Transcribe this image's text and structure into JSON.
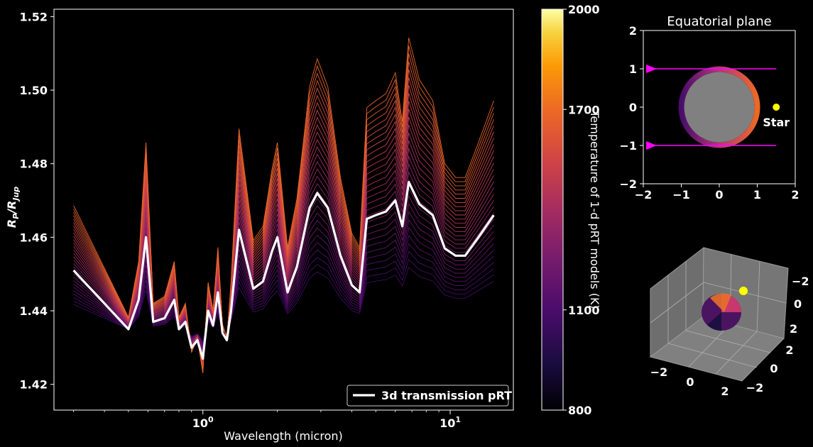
{
  "chart_data": [
    {
      "type": "line",
      "xlabel": "Wavelength (micron)",
      "ylabel_main": "R",
      "ylabel_main_sub": "P",
      "ylabel_div": "/R",
      "ylabel_div_sub": "Jup",
      "xscale": "log",
      "xlim": [
        0.25,
        18
      ],
      "ylim": [
        1.413,
        1.522
      ],
      "xticks": [
        {
          "value": 1,
          "base": "10",
          "exp": "0"
        },
        {
          "value": 10,
          "base": "10",
          "exp": "1"
        }
      ],
      "yticks": [
        "1.42",
        "1.44",
        "1.46",
        "1.48",
        "1.50",
        "1.52"
      ],
      "legend": {
        "position": "bottom-right",
        "label": "3d transmission pRT"
      },
      "model_count": 30,
      "highlight_series": {
        "name": "3d transmission pRT",
        "color": "#ffffff",
        "x": [
          0.3,
          0.33,
          0.4,
          0.5,
          0.55,
          0.589,
          0.63,
          0.7,
          0.766,
          0.8,
          0.85,
          0.9,
          0.95,
          1.0,
          1.05,
          1.1,
          1.15,
          1.2,
          1.25,
          1.3,
          1.4,
          1.6,
          1.75,
          1.9,
          2.0,
          2.2,
          2.4,
          2.7,
          2.9,
          3.2,
          3.6,
          4.0,
          4.3,
          4.6,
          5.0,
          5.5,
          6.0,
          6.4,
          6.8,
          7.5,
          8.5,
          9.5,
          10.5,
          11.5,
          13.0,
          15.0
        ],
        "y": [
          1.451,
          1.448,
          1.442,
          1.435,
          1.443,
          1.46,
          1.437,
          1.438,
          1.443,
          1.435,
          1.437,
          1.43,
          1.432,
          1.427,
          1.44,
          1.436,
          1.445,
          1.434,
          1.432,
          1.44,
          1.462,
          1.446,
          1.448,
          1.456,
          1.46,
          1.445,
          1.452,
          1.468,
          1.472,
          1.468,
          1.455,
          1.447,
          1.445,
          1.465,
          1.466,
          1.467,
          1.47,
          1.463,
          1.475,
          1.469,
          1.466,
          1.457,
          1.455,
          1.455,
          1.46,
          1.466
        ]
      },
      "colorbar": {
        "label": "Temperature of 1-d pRT models (K)",
        "min": 800,
        "max": 2000,
        "ticks": [
          "800",
          "1100",
          "1700",
          "2000"
        ],
        "colormap": "inferno"
      }
    },
    {
      "type": "scatter",
      "title": "Equatorial plane",
      "xlim": [
        -2,
        2
      ],
      "ylim": [
        -2,
        2
      ],
      "xticks": [
        "−2",
        "−1",
        "0",
        "1",
        "2"
      ],
      "yticks": [
        "−2",
        "−1",
        "0",
        "1",
        "2"
      ],
      "planet": {
        "x": 0,
        "y": 0,
        "radius": 1,
        "color": "#808080"
      },
      "star": {
        "x": 1.5,
        "y": 0,
        "label": "Star",
        "color": "#ffff00"
      },
      "arrows": [
        {
          "from": [
            1.5,
            1
          ],
          "to": [
            -1.7,
            1
          ]
        },
        {
          "from": [
            1.5,
            -1
          ],
          "to": [
            -1.7,
            -1
          ]
        }
      ],
      "arrow_color": "#ff00ff"
    },
    {
      "type": "scatter",
      "projection": "3d",
      "xticks": [
        "−2",
        "0",
        "2"
      ],
      "yticks": [
        "−2",
        "0",
        "2"
      ],
      "zticks": [
        "−2",
        "0",
        "2"
      ],
      "star_color": "#ffff00"
    }
  ]
}
